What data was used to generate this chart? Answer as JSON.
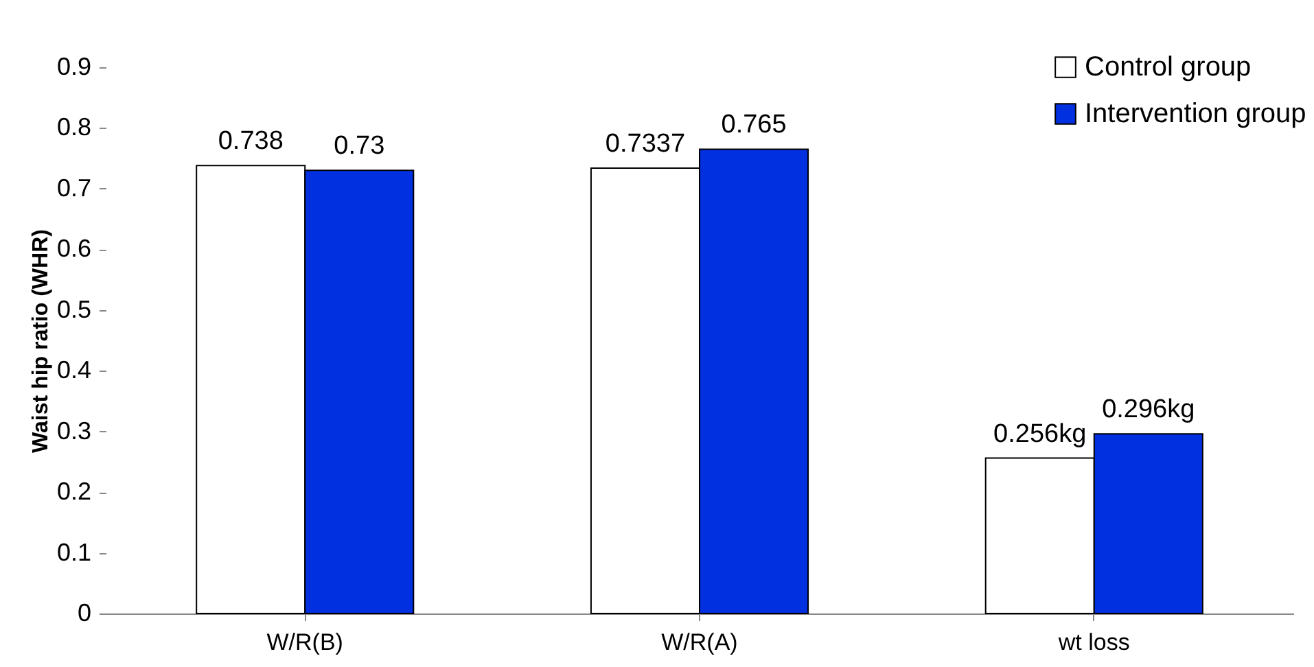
{
  "chart_data": {
    "type": "bar",
    "ylabel": "Waist hip ratio (WHR)",
    "categories": [
      "W/R(B)",
      "W/R(A)",
      "wt loss"
    ],
    "series": [
      {
        "name": "Control group",
        "color": "#ffffff",
        "values": [
          0.738,
          0.7337,
          0.256
        ],
        "value_labels": [
          "0.738",
          "0.7337",
          "0.256kg"
        ]
      },
      {
        "name": "Intervention group",
        "color": "#0030e0",
        "values": [
          0.73,
          0.765,
          0.296
        ],
        "value_labels": [
          "0.73",
          "0.765",
          "0.296kg"
        ]
      }
    ],
    "ylim": [
      0,
      0.9
    ],
    "yticks": [
      0,
      0.1,
      0.2,
      0.3,
      0.4,
      0.5,
      0.6,
      0.7,
      0.8,
      0.9
    ],
    "grid": false,
    "legend": "top right"
  }
}
